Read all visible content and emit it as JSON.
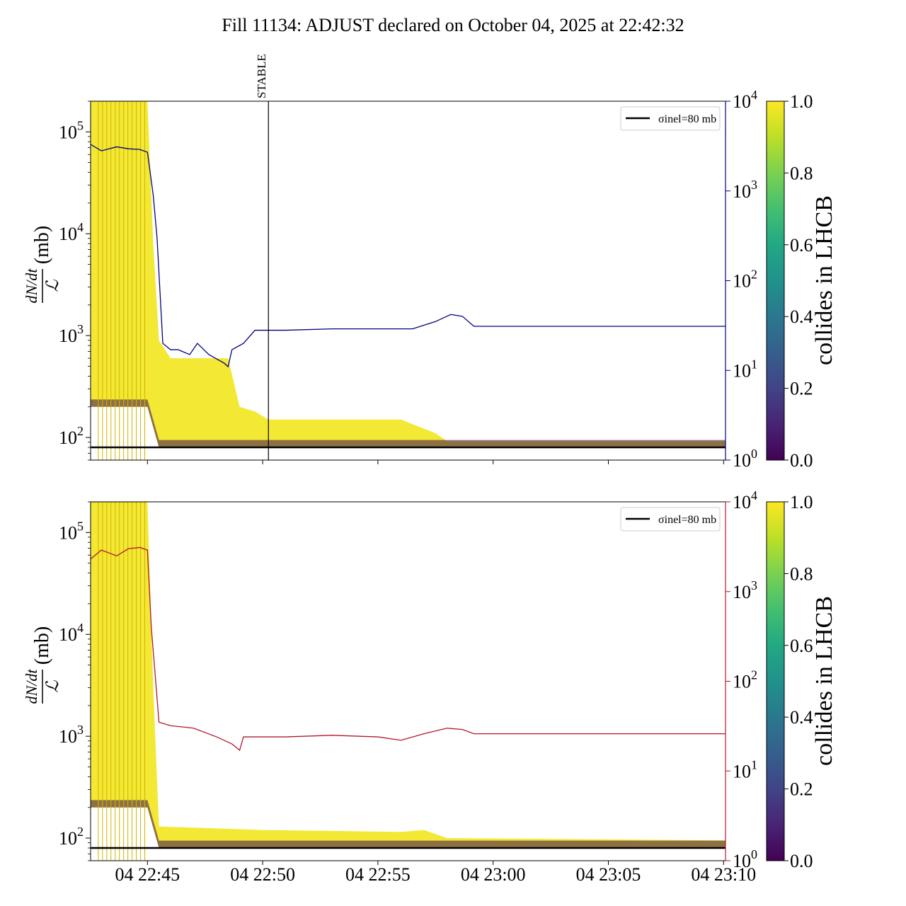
{
  "title": "Fill 11134: ADJUST declared on October 04, 2025 at 22:42:32",
  "colors": {
    "sigma_line": "#000000",
    "top_right_series": "#00007f",
    "bottom_right_series": "#b2182b",
    "marker_line": "#000000",
    "bunch_high": "#f2e51e",
    "bunch_low": "#3b0f4f"
  },
  "x_tick_labels": [
    "04 22:45",
    "04 22:50",
    "04 22:55",
    "04 23:00",
    "04 23:05",
    "04 23:10"
  ],
  "colorbar": {
    "label": "collides in LHCB",
    "ticks": [
      "0.0",
      "0.2",
      "0.4",
      "0.6",
      "0.8",
      "1.0"
    ],
    "colormap": "viridis"
  },
  "chart_data": [
    {
      "type": "line",
      "panel": "top",
      "ylabel_left": "dN/dt / ℒ (mb)",
      "y_scale": "log",
      "ylim_left": [
        60,
        200000
      ],
      "ylim_right": [
        1,
        10000
      ],
      "y_tick_labels_left": [
        "10^2",
        "10^3",
        "10^4",
        "10^5"
      ],
      "y_tick_labels_right": [
        "10^0",
        "10^1",
        "10^2",
        "10^3",
        "10^4"
      ],
      "xlim": [
        "2025-10-04 22:42:32",
        "2025-10-04 23:10:05"
      ],
      "legend": {
        "position": "top-right",
        "entries": [
          "σinel=80 mb"
        ]
      },
      "marker": {
        "label": "STABLE",
        "time": "2025-10-04 22:50:15"
      },
      "sigma_inel_mb": 80,
      "series": [
        {
          "name": "right-axis series",
          "axis": "right",
          "points": [
            [
              "22:42:32",
              3300
            ],
            [
              "22:43:00",
              2800
            ],
            [
              "22:43:40",
              3100
            ],
            [
              "22:44:10",
              2950
            ],
            [
              "22:44:40",
              2900
            ],
            [
              "22:45:00",
              2700
            ],
            [
              "22:45:15",
              900
            ],
            [
              "22:45:25",
              300
            ],
            [
              "22:45:40",
              20
            ],
            [
              "22:46:00",
              17
            ],
            [
              "22:46:20",
              17
            ],
            [
              "22:46:50",
              15
            ],
            [
              "22:47:10",
              20
            ],
            [
              "22:47:40",
              15
            ],
            [
              "22:48:20",
              12
            ],
            [
              "22:48:30",
              11
            ],
            [
              "22:48:40",
              17
            ],
            [
              "22:49:10",
              20
            ],
            [
              "22:49:40",
              28
            ],
            [
              "22:50:10",
              28
            ],
            [
              "22:51:00",
              28
            ],
            [
              "22:53:00",
              29
            ],
            [
              "22:55:00",
              29
            ],
            [
              "22:56:30",
              29
            ],
            [
              "22:57:30",
              35
            ],
            [
              "22:58:10",
              42
            ],
            [
              "22:58:40",
              40
            ],
            [
              "22:59:10",
              31
            ],
            [
              "23:00:00",
              31
            ],
            [
              "23:05:00",
              31
            ],
            [
              "23:10:05",
              31
            ]
          ]
        },
        {
          "name": "bunch rate envelope (collides=1)",
          "axis": "left",
          "upper": [
            [
              "22:42:32",
              200000
            ],
            [
              "22:45:00",
              200000
            ],
            [
              "22:45:15",
              8000
            ],
            [
              "22:45:30",
              900
            ],
            [
              "22:46:00",
              600
            ],
            [
              "22:48:30",
              600
            ],
            [
              "22:49:00",
              200
            ],
            [
              "22:49:40",
              180
            ],
            [
              "22:50:15",
              150
            ],
            [
              "22:56:00",
              150
            ],
            [
              "22:57:30",
              110
            ],
            [
              "22:58:00",
              92
            ],
            [
              "23:10:05",
              92
            ]
          ],
          "lower": [
            [
              "22:42:32",
              200
            ],
            [
              "22:45:00",
              200
            ],
            [
              "22:45:30",
              80
            ],
            [
              "23:10:05",
              80
            ]
          ]
        }
      ]
    },
    {
      "type": "line",
      "panel": "bottom",
      "ylabel_left": "dN/dt / ℒ (mb)",
      "y_scale": "log",
      "ylim_left": [
        60,
        200000
      ],
      "ylim_right": [
        1,
        10000
      ],
      "y_tick_labels_left": [
        "10^2",
        "10^3",
        "10^4",
        "10^5"
      ],
      "y_tick_labels_right": [
        "10^0",
        "10^1",
        "10^2",
        "10^3",
        "10^4"
      ],
      "xlim": [
        "2025-10-04 22:42:32",
        "2025-10-04 23:10:05"
      ],
      "legend": {
        "position": "top-right",
        "entries": [
          "σinel=80 mb"
        ]
      },
      "sigma_inel_mb": 80,
      "series": [
        {
          "name": "right-axis series",
          "axis": "right",
          "points": [
            [
              "22:42:32",
              2300
            ],
            [
              "22:43:00",
              2900
            ],
            [
              "22:43:40",
              2500
            ],
            [
              "22:44:10",
              3000
            ],
            [
              "22:44:40",
              3100
            ],
            [
              "22:45:00",
              2900
            ],
            [
              "22:45:10",
              400
            ],
            [
              "22:45:20",
              120
            ],
            [
              "22:45:30",
              35
            ],
            [
              "22:46:00",
              32
            ],
            [
              "22:47:00",
              30
            ],
            [
              "22:48:00",
              24
            ],
            [
              "22:48:40",
              20
            ],
            [
              "22:49:00",
              17
            ],
            [
              "22:49:10",
              24
            ],
            [
              "22:50:00",
              24
            ],
            [
              "22:51:00",
              24
            ],
            [
              "22:53:00",
              25
            ],
            [
              "22:55:00",
              24
            ],
            [
              "22:56:00",
              22
            ],
            [
              "22:57:00",
              26
            ],
            [
              "22:58:00",
              30
            ],
            [
              "22:58:40",
              29
            ],
            [
              "22:59:10",
              26
            ],
            [
              "23:00:00",
              26
            ],
            [
              "23:05:00",
              26
            ],
            [
              "23:10:05",
              26
            ]
          ]
        },
        {
          "name": "bunch rate envelope (collides=1)",
          "axis": "left",
          "upper": [
            [
              "22:42:32",
              200000
            ],
            [
              "22:45:00",
              200000
            ],
            [
              "22:45:15",
              3000
            ],
            [
              "22:45:30",
              130
            ],
            [
              "22:50:00",
              120
            ],
            [
              "22:56:00",
              115
            ],
            [
              "22:57:00",
              120
            ],
            [
              "22:58:00",
              100
            ],
            [
              "23:10:05",
              95
            ]
          ],
          "lower": [
            [
              "22:42:32",
              200
            ],
            [
              "22:45:00",
              200
            ],
            [
              "22:45:30",
              80
            ],
            [
              "23:10:05",
              80
            ]
          ]
        }
      ]
    }
  ]
}
